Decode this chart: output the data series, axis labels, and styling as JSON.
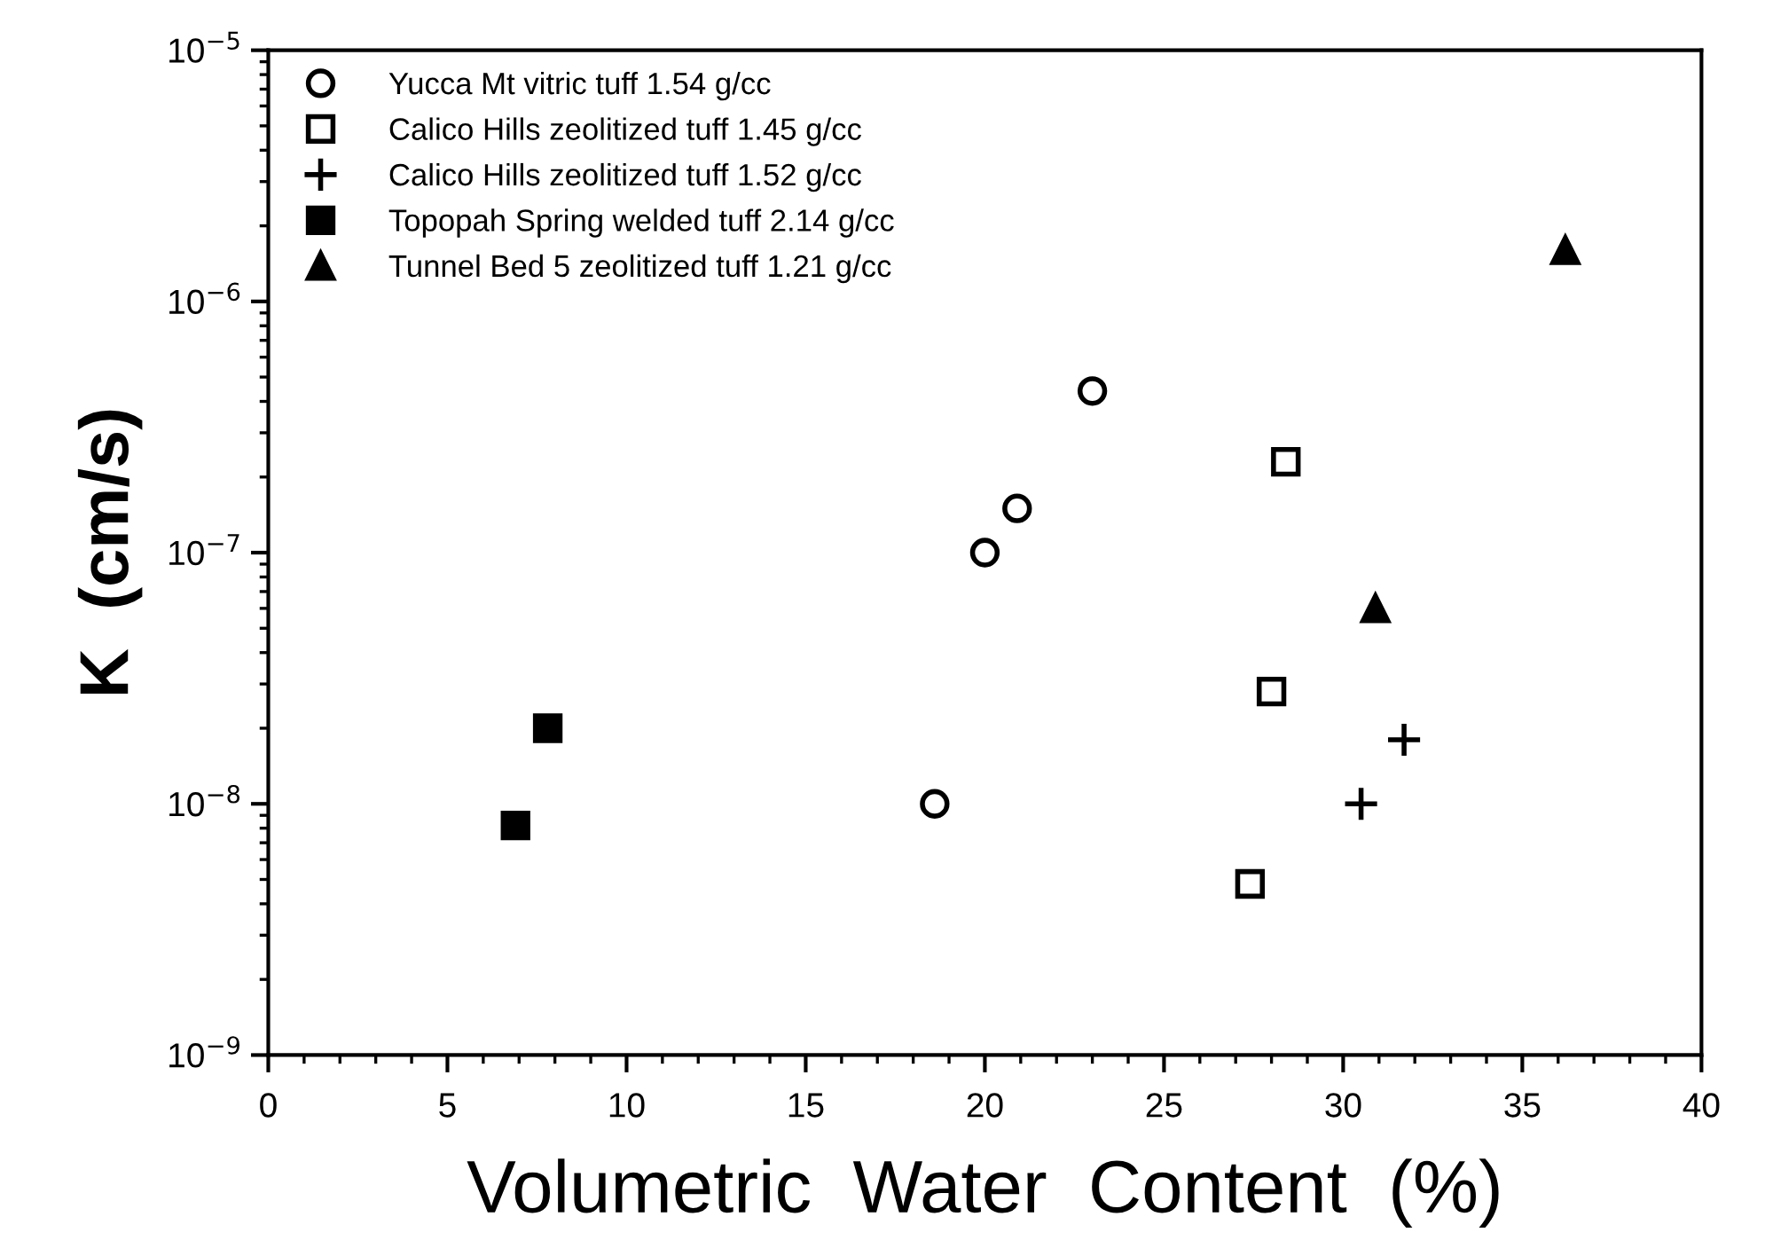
{
  "chart_data": {
    "type": "scatter",
    "xlabel": "Volumetric  Water  Content  (%)",
    "ylabel": "K  (cm/s)",
    "xlim": [
      0,
      40
    ],
    "xticks": [
      0,
      5,
      10,
      15,
      20,
      25,
      30,
      35,
      40
    ],
    "ylim": [
      1e-09,
      1e-05
    ],
    "log": "y",
    "yticks": [
      {
        "value": 1e-09,
        "label": "10$^{−9}$"
      },
      {
        "value": 1e-08,
        "label": "10$^{−8}$"
      },
      {
        "value": 1e-07,
        "label": "10$^{−7}$"
      },
      {
        "value": 1e-06,
        "label": "10$^{−6}$"
      },
      {
        "value": 1e-05,
        "label": "10$^{−5}$"
      }
    ],
    "grid": false,
    "legend": "top left",
    "series": [
      {
        "name": "Yucca Mt vitric tuff 1.54 g/cc",
        "color": "#000000",
        "marker": "circle",
        "x": [
          18.6,
          20.0,
          20.9,
          23.0
        ],
        "values": [
          1e-08,
          1e-07,
          1.5e-07,
          4.4e-07
        ]
      },
      {
        "name": "Calico Hills zeolitized tuff 1.45 g/cc",
        "color": "#000000",
        "marker": "square",
        "x": [
          28.4,
          28.0,
          27.4
        ],
        "values": [
          2.3e-07,
          2.8e-08,
          4.8e-09
        ]
      },
      {
        "name": "Calico Hills zeolitized tuff 1.52 g/cc",
        "color": "#000000",
        "marker": "cross",
        "x": [
          31.7,
          30.5
        ],
        "values": [
          1.8e-08,
          1e-08
        ]
      },
      {
        "name": "Topopah Spring welded tuff 2.14 g/cc",
        "color": "#000000",
        "marker": "square",
        "x": [
          7.8,
          6.9
        ],
        "values": [
          2e-08,
          8.2e-09
        ]
      },
      {
        "name": "Tunnel Bed 5 zeolitized tuff 1.21 g/cc",
        "color": "#000000",
        "marker": "triangle",
        "x": [
          36.2,
          30.9
        ],
        "values": [
          1.6e-06,
          6e-08
        ]
      }
    ]
  }
}
